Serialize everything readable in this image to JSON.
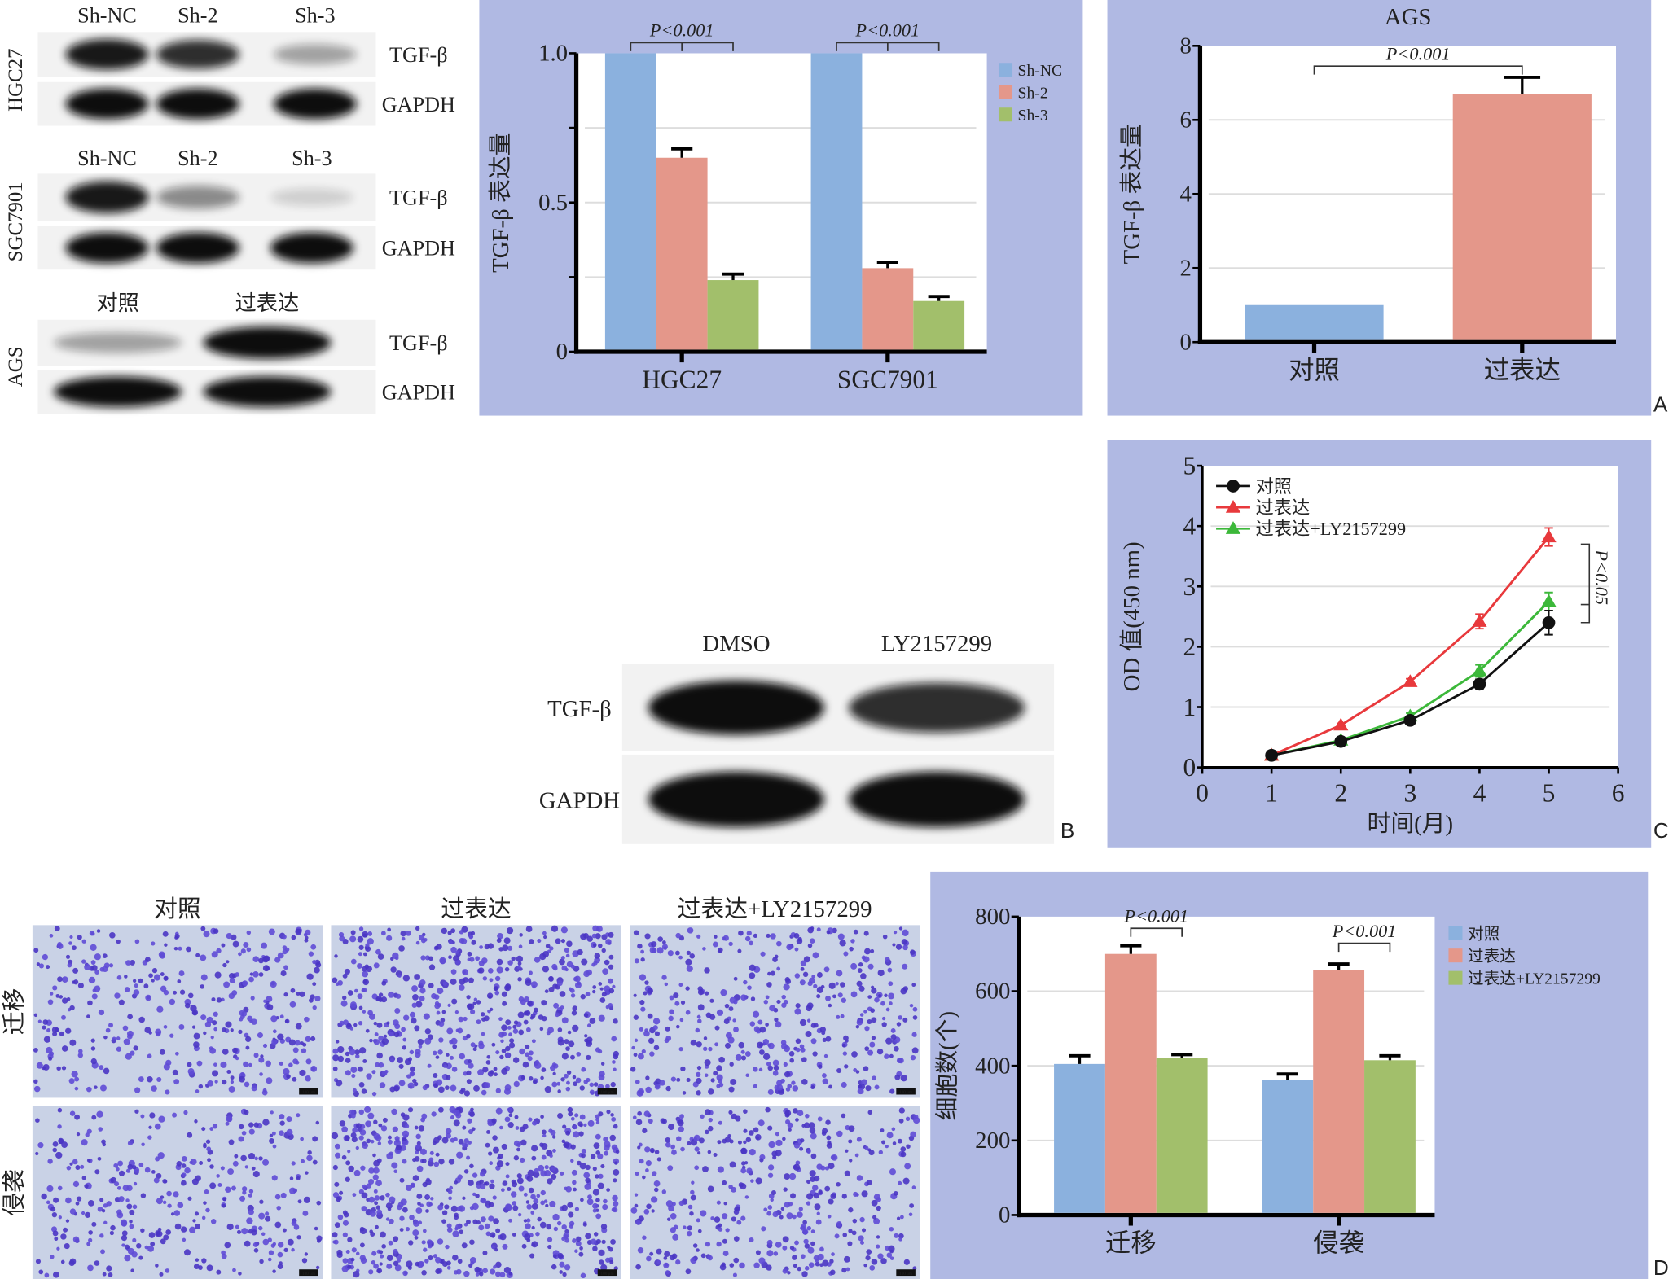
{
  "figure_labels": {
    "A": "A",
    "B": "B",
    "C": "C",
    "D": "D"
  },
  "blots": [
    {
      "cell_line": "HGC27",
      "lanes": [
        "Sh-NC",
        "Sh-2",
        "Sh-3"
      ],
      "rows": [
        {
          "label": "TGF-β",
          "intensity": [
            0.95,
            0.85,
            0.35
          ]
        },
        {
          "label": "GAPDH",
          "intensity": [
            1,
            1,
            1
          ]
        }
      ]
    },
    {
      "cell_line": "SGC7901",
      "lanes": [
        "Sh-NC",
        "Sh-2",
        "Sh-3"
      ],
      "rows": [
        {
          "label": "TGF-β",
          "intensity": [
            0.95,
            0.45,
            0.15
          ]
        },
        {
          "label": "GAPDH",
          "intensity": [
            1,
            1,
            1
          ]
        }
      ]
    },
    {
      "cell_line": "AGS",
      "lanes": [
        "对照",
        "过表达"
      ],
      "rows": [
        {
          "label": "TGF-β",
          "intensity": [
            0.35,
            1
          ]
        },
        {
          "label": "GAPDH",
          "intensity": [
            1,
            1
          ]
        }
      ]
    }
  ],
  "blot_b": {
    "lanes": [
      "DMSO",
      "LY2157299"
    ],
    "rows": [
      {
        "label": "TGF-β",
        "intensity": [
          1,
          0.85
        ]
      },
      {
        "label": "GAPDH",
        "intensity": [
          1,
          1
        ]
      }
    ]
  },
  "micrographs": {
    "columns": [
      "对照",
      "过表达",
      "过表达+LY2157299"
    ],
    "rows": [
      "迁移",
      "侵袭"
    ],
    "cell_density": [
      [
        0.55,
        0.85,
        0.6
      ],
      [
        0.5,
        0.9,
        0.6
      ]
    ],
    "scale_bar": "100 μm"
  },
  "chart_data": [
    {
      "type": "bar",
      "title": "",
      "xlabel": "",
      "ylabel": "TGF-β 表达量",
      "categories": [
        "HGC27",
        "SGC7901"
      ],
      "ylim": [
        0,
        1.0
      ],
      "yticks": [
        0,
        0.25,
        0.5,
        0.75,
        1.0
      ],
      "ytick_labels": [
        "0",
        "",
        "0.5",
        "",
        "1.0"
      ],
      "grid": true,
      "legend": "right",
      "series": [
        {
          "name": "Sh-NC",
          "values": [
            1.0,
            1.0
          ],
          "errors": [
            0,
            0
          ],
          "color": "#8bb1de"
        },
        {
          "name": "Sh-2",
          "values": [
            0.65,
            0.28
          ],
          "errors": [
            0.03,
            0.02
          ],
          "color": "#e4978a"
        },
        {
          "name": "Sh-3",
          "values": [
            0.24,
            0.17
          ],
          "errors": [
            0.02,
            0.015
          ],
          "color": "#a2bf6b"
        }
      ],
      "annotations": [
        {
          "text": "P<0.001",
          "category": 0,
          "from": 0,
          "to": 2
        },
        {
          "text": "P<0.001",
          "category": 1,
          "from": 0,
          "to": 2
        }
      ]
    },
    {
      "type": "bar",
      "title": "AGS",
      "xlabel": "",
      "ylabel": "TGF-β 表达量",
      "categories": [
        "对照",
        "过表达"
      ],
      "ylim": [
        0,
        8
      ],
      "yticks": [
        0,
        2,
        4,
        6,
        8
      ],
      "ytick_labels": [
        "0",
        "2",
        "4",
        "6",
        "8"
      ],
      "grid": true,
      "legend": "none",
      "series": [
        {
          "name": "TGF-β",
          "values": [
            1.0,
            6.7
          ],
          "errors": [
            0,
            0.45
          ],
          "colors": [
            "#8bb1de",
            "#e4978a"
          ]
        }
      ],
      "annotations": [
        {
          "text": "P<0.001",
          "from_category": 0,
          "to_category": 1
        }
      ]
    },
    {
      "type": "line",
      "title": "",
      "xlabel": "时间(月)",
      "ylabel": "OD 值(450 nm)",
      "x": [
        1,
        2,
        3,
        4,
        5
      ],
      "xlim": [
        0,
        6
      ],
      "ylim": [
        0,
        5
      ],
      "xticks": [
        0,
        1,
        2,
        3,
        4,
        5,
        6
      ],
      "yticks": [
        0,
        1,
        2,
        3,
        4,
        5
      ],
      "grid": true,
      "legend": "top-left",
      "series": [
        {
          "name": "对照",
          "values": [
            0.2,
            0.43,
            0.78,
            1.38,
            2.4
          ],
          "errors": [
            0.03,
            0.04,
            0.05,
            0.08,
            0.2
          ],
          "color": "#111111",
          "marker": "circle"
        },
        {
          "name": "过表达",
          "values": [
            0.2,
            0.7,
            1.42,
            2.42,
            3.82
          ],
          "errors": [
            0.02,
            0.03,
            0.05,
            0.12,
            0.15
          ],
          "color": "#e8393c",
          "marker": "triangle"
        },
        {
          "name": "过表达+LY2157299",
          "values": [
            0.2,
            0.45,
            0.85,
            1.6,
            2.75
          ],
          "errors": [
            0.02,
            0.03,
            0.05,
            0.1,
            0.15
          ],
          "color": "#3cb83a",
          "marker": "triangle"
        }
      ],
      "annotations": [
        {
          "text": "P<0.05",
          "x": 5,
          "from_value": 3.7,
          "to_value": 2.4,
          "mid_value": 2.7
        }
      ]
    },
    {
      "type": "bar",
      "title": "",
      "xlabel": "",
      "ylabel": "细胞数(个)",
      "categories": [
        "迁移",
        "侵袭"
      ],
      "ylim": [
        0,
        800
      ],
      "yticks": [
        0,
        200,
        400,
        600,
        800
      ],
      "ytick_labels": [
        "0",
        "200",
        "400",
        "600",
        "800"
      ],
      "grid": true,
      "legend": "right",
      "series": [
        {
          "name": "对照",
          "values": [
            405,
            362
          ],
          "errors": [
            22,
            16
          ],
          "color": "#8bb1de"
        },
        {
          "name": "过表达",
          "values": [
            700,
            657
          ],
          "errors": [
            22,
            16
          ],
          "color": "#e4978a"
        },
        {
          "name": "过表达+LY2157299",
          "values": [
            422,
            415
          ],
          "errors": [
            8,
            12
          ],
          "color": "#a2bf6b"
        }
      ],
      "annotations": [
        {
          "text": "P<0.001",
          "category": 0,
          "from": 1,
          "to": 2
        },
        {
          "text": "P<0.001",
          "category": 1,
          "from": 1,
          "to": 2
        }
      ]
    }
  ]
}
